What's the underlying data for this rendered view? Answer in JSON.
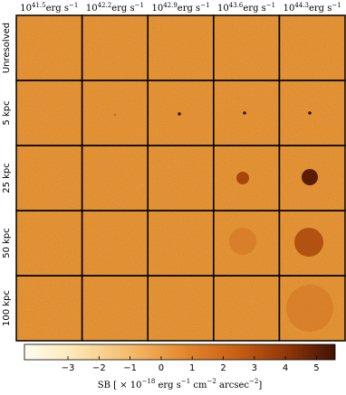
{
  "chart_data": {
    "type": "image-grid",
    "columns": [
      {
        "base": "10",
        "exp": "41.5",
        "unit": "erg s",
        "unit_exp": "−1"
      },
      {
        "base": "10",
        "exp": "42.2",
        "unit": "erg s",
        "unit_exp": "−1"
      },
      {
        "base": "10",
        "exp": "42.9",
        "unit": "erg s",
        "unit_exp": "−1"
      },
      {
        "base": "10",
        "exp": "43.6",
        "unit": "erg s",
        "unit_exp": "−1"
      },
      {
        "base": "10",
        "exp": "44.3",
        "unit": "erg s",
        "unit_exp": "−1"
      }
    ],
    "rows": [
      "Unresolved",
      "5 kpc",
      "25 kpc",
      "50 kpc",
      "100 kpc"
    ],
    "colorbar": {
      "xlim": [
        -4.4,
        5.6
      ],
      "xticks": [
        {
          "value": -3,
          "label": "−3"
        },
        {
          "value": -2,
          "label": "−2"
        },
        {
          "value": -1,
          "label": "−1"
        },
        0,
        1,
        2,
        3,
        4,
        5
      ],
      "label": [
        {
          "text": "SB [ × 10"
        },
        {
          "sup": "−18"
        },
        {
          "text": " erg s"
        },
        {
          "sup": "−1"
        },
        {
          "text": " cm"
        },
        {
          "sup": "−2"
        },
        {
          "text": " arcsec"
        },
        {
          "sup": "−2"
        },
        {
          "text": "]"
        }
      ]
    }
  }
}
